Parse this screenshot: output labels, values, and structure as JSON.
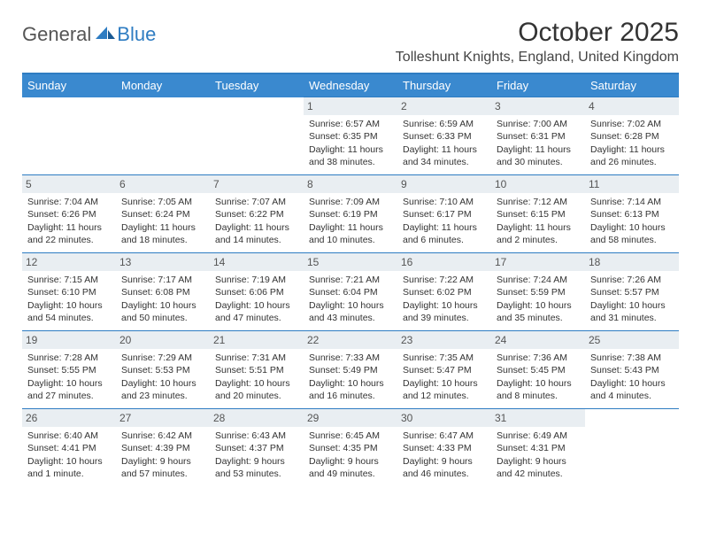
{
  "logo": {
    "part1": "General",
    "part2": "Blue"
  },
  "title": "October 2025",
  "location": "Tolleshunt Knights, England, United Kingdom",
  "colors": {
    "header_bg": "#3a89cf",
    "header_text": "#ffffff",
    "border": "#2e7cc2",
    "daynum_bg": "#e9eef2",
    "logo_blue": "#2e7cc2"
  },
  "day_headers": [
    "Sunday",
    "Monday",
    "Tuesday",
    "Wednesday",
    "Thursday",
    "Friday",
    "Saturday"
  ],
  "weeks": [
    [
      null,
      null,
      null,
      {
        "n": "1",
        "sr": "6:57 AM",
        "ss": "6:35 PM",
        "dl": "11 hours and 38 minutes."
      },
      {
        "n": "2",
        "sr": "6:59 AM",
        "ss": "6:33 PM",
        "dl": "11 hours and 34 minutes."
      },
      {
        "n": "3",
        "sr": "7:00 AM",
        "ss": "6:31 PM",
        "dl": "11 hours and 30 minutes."
      },
      {
        "n": "4",
        "sr": "7:02 AM",
        "ss": "6:28 PM",
        "dl": "11 hours and 26 minutes."
      }
    ],
    [
      {
        "n": "5",
        "sr": "7:04 AM",
        "ss": "6:26 PM",
        "dl": "11 hours and 22 minutes."
      },
      {
        "n": "6",
        "sr": "7:05 AM",
        "ss": "6:24 PM",
        "dl": "11 hours and 18 minutes."
      },
      {
        "n": "7",
        "sr": "7:07 AM",
        "ss": "6:22 PM",
        "dl": "11 hours and 14 minutes."
      },
      {
        "n": "8",
        "sr": "7:09 AM",
        "ss": "6:19 PM",
        "dl": "11 hours and 10 minutes."
      },
      {
        "n": "9",
        "sr": "7:10 AM",
        "ss": "6:17 PM",
        "dl": "11 hours and 6 minutes."
      },
      {
        "n": "10",
        "sr": "7:12 AM",
        "ss": "6:15 PM",
        "dl": "11 hours and 2 minutes."
      },
      {
        "n": "11",
        "sr": "7:14 AM",
        "ss": "6:13 PM",
        "dl": "10 hours and 58 minutes."
      }
    ],
    [
      {
        "n": "12",
        "sr": "7:15 AM",
        "ss": "6:10 PM",
        "dl": "10 hours and 54 minutes."
      },
      {
        "n": "13",
        "sr": "7:17 AM",
        "ss": "6:08 PM",
        "dl": "10 hours and 50 minutes."
      },
      {
        "n": "14",
        "sr": "7:19 AM",
        "ss": "6:06 PM",
        "dl": "10 hours and 47 minutes."
      },
      {
        "n": "15",
        "sr": "7:21 AM",
        "ss": "6:04 PM",
        "dl": "10 hours and 43 minutes."
      },
      {
        "n": "16",
        "sr": "7:22 AM",
        "ss": "6:02 PM",
        "dl": "10 hours and 39 minutes."
      },
      {
        "n": "17",
        "sr": "7:24 AM",
        "ss": "5:59 PM",
        "dl": "10 hours and 35 minutes."
      },
      {
        "n": "18",
        "sr": "7:26 AM",
        "ss": "5:57 PM",
        "dl": "10 hours and 31 minutes."
      }
    ],
    [
      {
        "n": "19",
        "sr": "7:28 AM",
        "ss": "5:55 PM",
        "dl": "10 hours and 27 minutes."
      },
      {
        "n": "20",
        "sr": "7:29 AM",
        "ss": "5:53 PM",
        "dl": "10 hours and 23 minutes."
      },
      {
        "n": "21",
        "sr": "7:31 AM",
        "ss": "5:51 PM",
        "dl": "10 hours and 20 minutes."
      },
      {
        "n": "22",
        "sr": "7:33 AM",
        "ss": "5:49 PM",
        "dl": "10 hours and 16 minutes."
      },
      {
        "n": "23",
        "sr": "7:35 AM",
        "ss": "5:47 PM",
        "dl": "10 hours and 12 minutes."
      },
      {
        "n": "24",
        "sr": "7:36 AM",
        "ss": "5:45 PM",
        "dl": "10 hours and 8 minutes."
      },
      {
        "n": "25",
        "sr": "7:38 AM",
        "ss": "5:43 PM",
        "dl": "10 hours and 4 minutes."
      }
    ],
    [
      {
        "n": "26",
        "sr": "6:40 AM",
        "ss": "4:41 PM",
        "dl": "10 hours and 1 minute."
      },
      {
        "n": "27",
        "sr": "6:42 AM",
        "ss": "4:39 PM",
        "dl": "9 hours and 57 minutes."
      },
      {
        "n": "28",
        "sr": "6:43 AM",
        "ss": "4:37 PM",
        "dl": "9 hours and 53 minutes."
      },
      {
        "n": "29",
        "sr": "6:45 AM",
        "ss": "4:35 PM",
        "dl": "9 hours and 49 minutes."
      },
      {
        "n": "30",
        "sr": "6:47 AM",
        "ss": "4:33 PM",
        "dl": "9 hours and 46 minutes."
      },
      {
        "n": "31",
        "sr": "6:49 AM",
        "ss": "4:31 PM",
        "dl": "9 hours and 42 minutes."
      },
      null
    ]
  ],
  "labels": {
    "sunrise": "Sunrise:",
    "sunset": "Sunset:",
    "daylight": "Daylight:"
  }
}
